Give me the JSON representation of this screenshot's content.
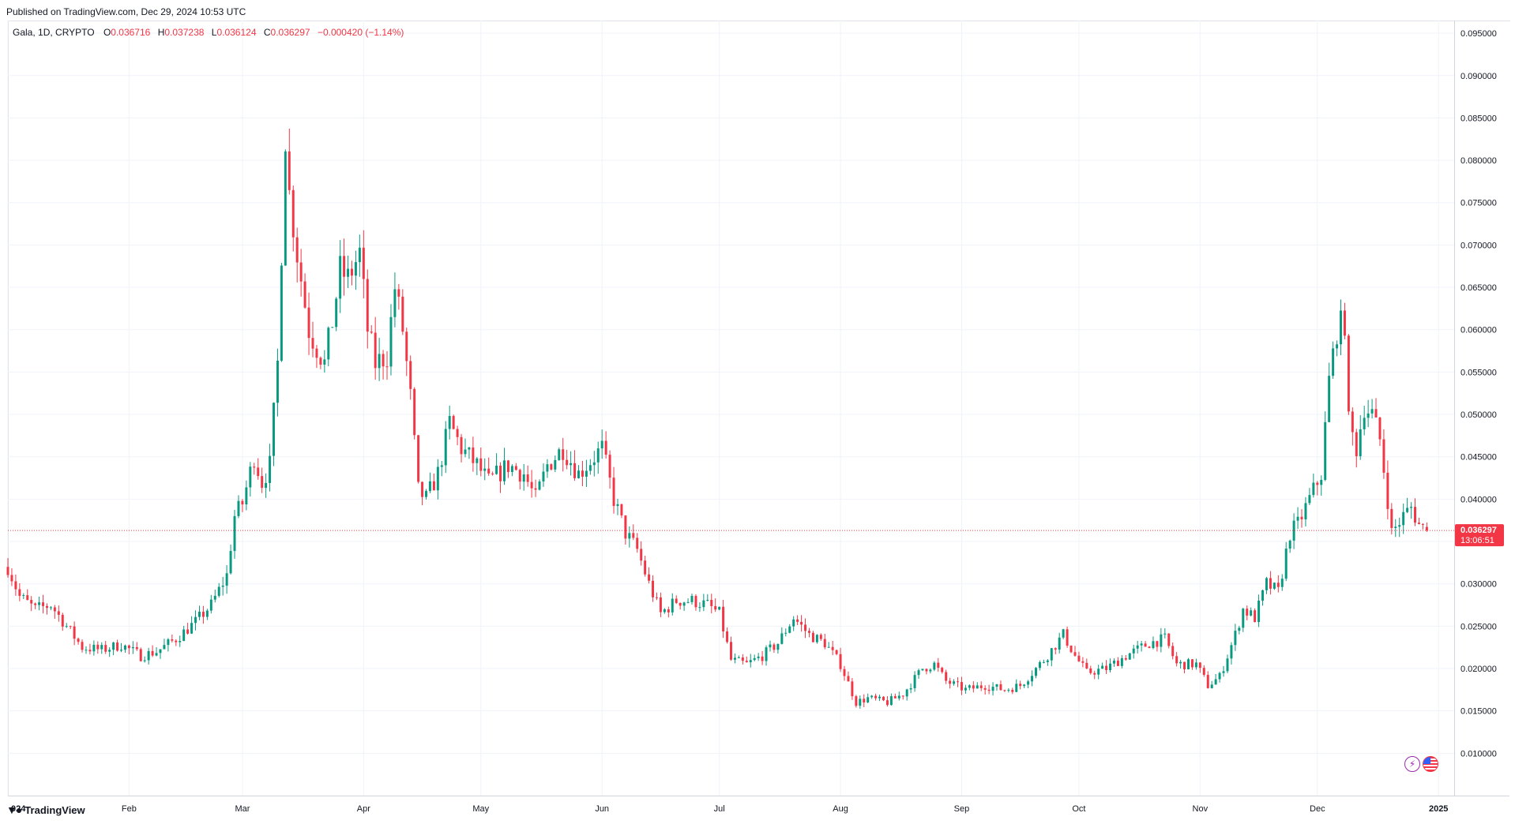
{
  "published": "Published on TradingView.com, Dec 29, 2024 10:53 UTC",
  "legend": {
    "symbol": "Gala, 1D, CRYPTO",
    "open_label": "O",
    "open": "0.036716",
    "high_label": "H",
    "high": "0.037238",
    "low_label": "L",
    "low": "0.036124",
    "close_label": "C",
    "close": "0.036297",
    "change": "−0.000420 (−1.14%)"
  },
  "branding": {
    "logo_text": "TradingView"
  },
  "icons": {
    "bolt": "lightning-icon",
    "flag": "us-flag-icon"
  },
  "colors": {
    "up": "#089981",
    "down": "#f23645",
    "grid": "#f0f3fa",
    "last_price_line": "#f23645"
  },
  "chart_data": {
    "type": "candlestick",
    "interval": "1D",
    "y_ticks": [
      "0.010000",
      "0.015000",
      "0.020000",
      "0.025000",
      "0.030000",
      "0.035000",
      "0.040000",
      "0.045000",
      "0.050000",
      "0.055000",
      "0.060000",
      "0.065000",
      "0.070000",
      "0.075000",
      "0.080000",
      "0.085000",
      "0.090000",
      "0.095000"
    ],
    "x_ticks": [
      "024",
      "Feb",
      "Mar",
      "Apr",
      "May",
      "Jun",
      "Jul",
      "Aug",
      "Sep",
      "Oct",
      "Nov",
      "Dec",
      "2025"
    ],
    "ylim": [
      0.005,
      0.0965
    ],
    "x_start_date": "2024-01-01",
    "x_end_date": "2025-01-05",
    "last_price": "0.036297",
    "countdown": "13:06:51",
    "grid": true,
    "close_anchors": [
      [
        "2024-01-01",
        0.032
      ],
      [
        "2024-01-04",
        0.0285
      ],
      [
        "2024-01-08",
        0.027
      ],
      [
        "2024-01-12",
        0.0275
      ],
      [
        "2024-01-16",
        0.025
      ],
      [
        "2024-01-20",
        0.0225
      ],
      [
        "2024-01-25",
        0.0222
      ],
      [
        "2024-01-30",
        0.0228
      ],
      [
        "2024-02-04",
        0.0215
      ],
      [
        "2024-02-08",
        0.022
      ],
      [
        "2024-02-13",
        0.0235
      ],
      [
        "2024-02-18",
        0.0255
      ],
      [
        "2024-02-22",
        0.0275
      ],
      [
        "2024-02-26",
        0.031
      ],
      [
        "2024-02-28",
        0.038
      ],
      [
        "2024-03-01",
        0.0395
      ],
      [
        "2024-03-04",
        0.045
      ],
      [
        "2024-03-06",
        0.042
      ],
      [
        "2024-03-08",
        0.044
      ],
      [
        "2024-03-10",
        0.056
      ],
      [
        "2024-03-12",
        0.083
      ],
      [
        "2024-03-13",
        0.076
      ],
      [
        "2024-03-15",
        0.069
      ],
      [
        "2024-03-18",
        0.06
      ],
      [
        "2024-03-20",
        0.058
      ],
      [
        "2024-03-22",
        0.056
      ],
      [
        "2024-03-24",
        0.061
      ],
      [
        "2024-03-26",
        0.067
      ],
      [
        "2024-03-28",
        0.066
      ],
      [
        "2024-03-31",
        0.069
      ],
      [
        "2024-04-02",
        0.06
      ],
      [
        "2024-04-04",
        0.056
      ],
      [
        "2024-04-07",
        0.057
      ],
      [
        "2024-04-09",
        0.065
      ],
      [
        "2024-04-11",
        0.06
      ],
      [
        "2024-04-13",
        0.052
      ],
      [
        "2024-04-15",
        0.041
      ],
      [
        "2024-04-17",
        0.04
      ],
      [
        "2024-04-20",
        0.043
      ],
      [
        "2024-04-23",
        0.049
      ],
      [
        "2024-04-26",
        0.046
      ],
      [
        "2024-04-30",
        0.044
      ],
      [
        "2024-05-03",
        0.042
      ],
      [
        "2024-05-08",
        0.044
      ],
      [
        "2024-05-12",
        0.043
      ],
      [
        "2024-05-15",
        0.04
      ],
      [
        "2024-05-18",
        0.044
      ],
      [
        "2024-05-22",
        0.046
      ],
      [
        "2024-05-26",
        0.043
      ],
      [
        "2024-05-30",
        0.045
      ],
      [
        "2024-06-01",
        0.046
      ],
      [
        "2024-06-04",
        0.04
      ],
      [
        "2024-06-07",
        0.036
      ],
      [
        "2024-06-10",
        0.034
      ],
      [
        "2024-06-13",
        0.03
      ],
      [
        "2024-06-16",
        0.0265
      ],
      [
        "2024-06-20",
        0.028
      ],
      [
        "2024-06-24",
        0.028
      ],
      [
        "2024-06-28",
        0.0275
      ],
      [
        "2024-07-01",
        0.0265
      ],
      [
        "2024-07-04",
        0.021
      ],
      [
        "2024-07-08",
        0.0205
      ],
      [
        "2024-07-12",
        0.0215
      ],
      [
        "2024-07-16",
        0.023
      ],
      [
        "2024-07-20",
        0.026
      ],
      [
        "2024-07-24",
        0.024
      ],
      [
        "2024-07-28",
        0.023
      ],
      [
        "2024-08-01",
        0.0205
      ],
      [
        "2024-08-05",
        0.016
      ],
      [
        "2024-08-08",
        0.0165
      ],
      [
        "2024-08-13",
        0.016
      ],
      [
        "2024-08-17",
        0.017
      ],
      [
        "2024-08-22",
        0.02
      ],
      [
        "2024-08-25",
        0.0205
      ],
      [
        "2024-08-28",
        0.0185
      ],
      [
        "2024-09-02",
        0.0175
      ],
      [
        "2024-09-07",
        0.018
      ],
      [
        "2024-09-12",
        0.0175
      ],
      [
        "2024-09-16",
        0.018
      ],
      [
        "2024-09-22",
        0.021
      ],
      [
        "2024-09-27",
        0.024
      ],
      [
        "2024-09-30",
        0.0215
      ],
      [
        "2024-10-03",
        0.0195
      ],
      [
        "2024-10-08",
        0.02
      ],
      [
        "2024-10-13",
        0.0215
      ],
      [
        "2024-10-19",
        0.023
      ],
      [
        "2024-10-23",
        0.0235
      ],
      [
        "2024-10-26",
        0.0205
      ],
      [
        "2024-10-31",
        0.0205
      ],
      [
        "2024-11-03",
        0.018
      ],
      [
        "2024-11-06",
        0.019
      ],
      [
        "2024-11-10",
        0.024
      ],
      [
        "2024-11-12",
        0.027
      ],
      [
        "2024-11-15",
        0.026
      ],
      [
        "2024-11-18",
        0.03
      ],
      [
        "2024-11-21",
        0.029
      ],
      [
        "2024-11-24",
        0.036
      ],
      [
        "2024-11-26",
        0.037
      ],
      [
        "2024-11-29",
        0.04
      ],
      [
        "2024-12-02",
        0.043
      ],
      [
        "2024-12-04",
        0.054
      ],
      [
        "2024-12-06",
        0.06
      ],
      [
        "2024-12-08",
        0.061
      ],
      [
        "2024-12-09",
        0.049
      ],
      [
        "2024-12-11",
        0.046
      ],
      [
        "2024-12-13",
        0.051
      ],
      [
        "2024-12-15",
        0.05
      ],
      [
        "2024-12-17",
        0.047
      ],
      [
        "2024-12-19",
        0.04
      ],
      [
        "2024-12-20",
        0.036
      ],
      [
        "2024-12-23",
        0.038
      ],
      [
        "2024-12-25",
        0.039
      ],
      [
        "2024-12-27",
        0.037
      ],
      [
        "2024-12-29",
        0.0363
      ]
    ]
  }
}
